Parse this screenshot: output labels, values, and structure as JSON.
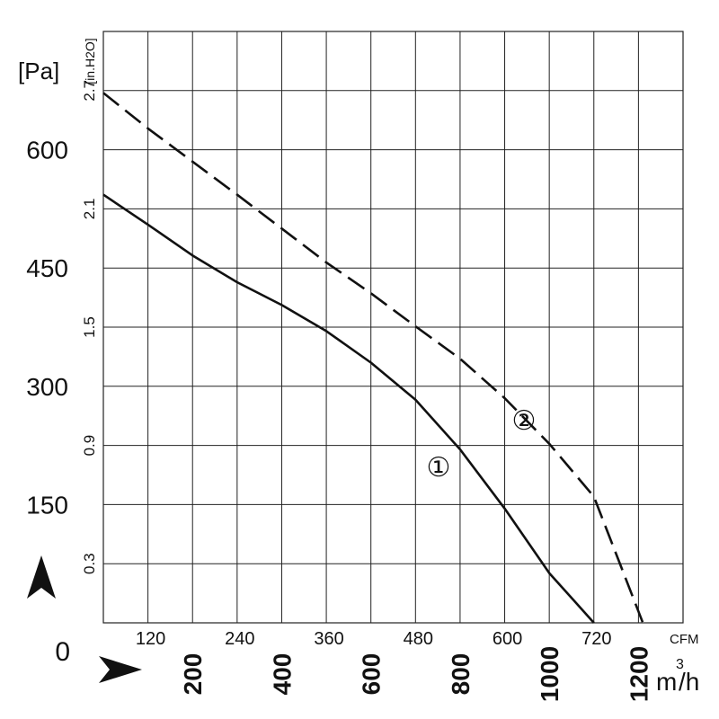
{
  "chart_data": {
    "type": "line",
    "y_left_unit": "[Pa]",
    "y_left_ticks": [
      "0",
      "150",
      "300",
      "450",
      "600"
    ],
    "y_right_unit": "[in.H2O]",
    "y_right_ticks": [
      "0.3",
      "0.9",
      "1.5",
      "2.1",
      "2.7"
    ],
    "x_top_unit": "CFM",
    "x_top_ticks": [
      "120",
      "240",
      "360",
      "480",
      "600",
      "720"
    ],
    "x_bottom_unit": "m3/h",
    "x_bottom_ticks": [
      "200",
      "400",
      "600",
      "800",
      "1000",
      "1200"
    ],
    "xlim_m3h": [
      0,
      1300
    ],
    "ylim_pa": [
      0,
      750
    ],
    "grid": true,
    "series": [
      {
        "name": "①",
        "style": "solid",
        "x": [
          0,
          100,
          200,
          300,
          400,
          500,
          600,
          700,
          800,
          900,
          1000,
          1100
        ],
        "y": [
          543,
          505,
          466,
          432,
          403,
          370,
          330,
          283,
          220,
          145,
          63,
          0
        ]
      },
      {
        "name": "②",
        "style": "dashed",
        "x": [
          0,
          100,
          200,
          300,
          400,
          500,
          600,
          700,
          800,
          900,
          1000,
          1100,
          1210
        ],
        "y": [
          672,
          627,
          585,
          543,
          500,
          457,
          418,
          376,
          335,
          285,
          227,
          160,
          0
        ]
      }
    ],
    "annotations": [
      {
        "text": "①",
        "series": 0
      },
      {
        "text": "②",
        "series": 1
      }
    ],
    "arrows": {
      "up": "arrow-up",
      "right": "arrow-right"
    }
  }
}
